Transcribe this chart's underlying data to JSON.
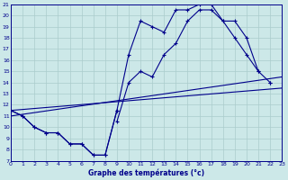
{
  "xlabel": "Graphe des températures (°c)",
  "ylim": [
    7,
    21
  ],
  "xlim": [
    0,
    23
  ],
  "yticks": [
    7,
    8,
    9,
    10,
    11,
    12,
    13,
    14,
    15,
    16,
    17,
    18,
    19,
    20,
    21
  ],
  "xticks": [
    0,
    1,
    2,
    3,
    4,
    5,
    6,
    7,
    8,
    9,
    10,
    11,
    12,
    13,
    14,
    15,
    16,
    17,
    18,
    19,
    20,
    21,
    22,
    23
  ],
  "bg_color": "#cce8e8",
  "grid_color": "#aacccc",
  "line_color": "#00008b",
  "series_top": {
    "x": [
      0,
      1,
      2,
      3,
      4,
      5,
      6,
      7,
      8,
      9,
      10,
      11,
      12,
      13,
      14,
      15,
      16,
      17,
      18,
      19,
      20,
      21
    ],
    "y": [
      11.5,
      11.0,
      10.0,
      9.5,
      9.5,
      8.5,
      8.5,
      7.5,
      7.5,
      11.5,
      16.5,
      19.5,
      19.0,
      18.5,
      20.5,
      20.5,
      21.0,
      21.0,
      19.5,
      18.0,
      16.5,
      15.0
    ]
  },
  "series_bot": {
    "x": [
      0,
      1,
      2,
      3,
      4,
      5,
      6,
      7,
      8,
      9,
      10,
      11,
      12,
      13,
      14,
      15,
      16,
      17,
      18,
      19,
      20,
      21,
      22,
      23
    ],
    "y": [
      11.5,
      11.0,
      10.0,
      9.5,
      9.5,
      8.5,
      8.5,
      7.5,
      7.5,
      11.5,
      null,
      null,
      null,
      null,
      null,
      null,
      null,
      null,
      null,
      null,
      null,
      null,
      14.0,
      null
    ]
  },
  "series_trend1": {
    "x": [
      0,
      23
    ],
    "y": [
      11.5,
      13.5
    ]
  },
  "series_trend2": {
    "x": [
      0,
      23
    ],
    "y": [
      11.0,
      14.5
    ]
  },
  "series_upper": {
    "x": [
      9,
      10,
      11,
      12,
      13,
      14,
      15,
      16,
      17,
      18,
      19,
      20,
      21,
      22
    ],
    "y": [
      10.5,
      14.0,
      15.0,
      14.5,
      16.5,
      17.5,
      19.5,
      20.5,
      20.5,
      19.5,
      19.5,
      18.0,
      15.0,
      14.0
    ]
  }
}
